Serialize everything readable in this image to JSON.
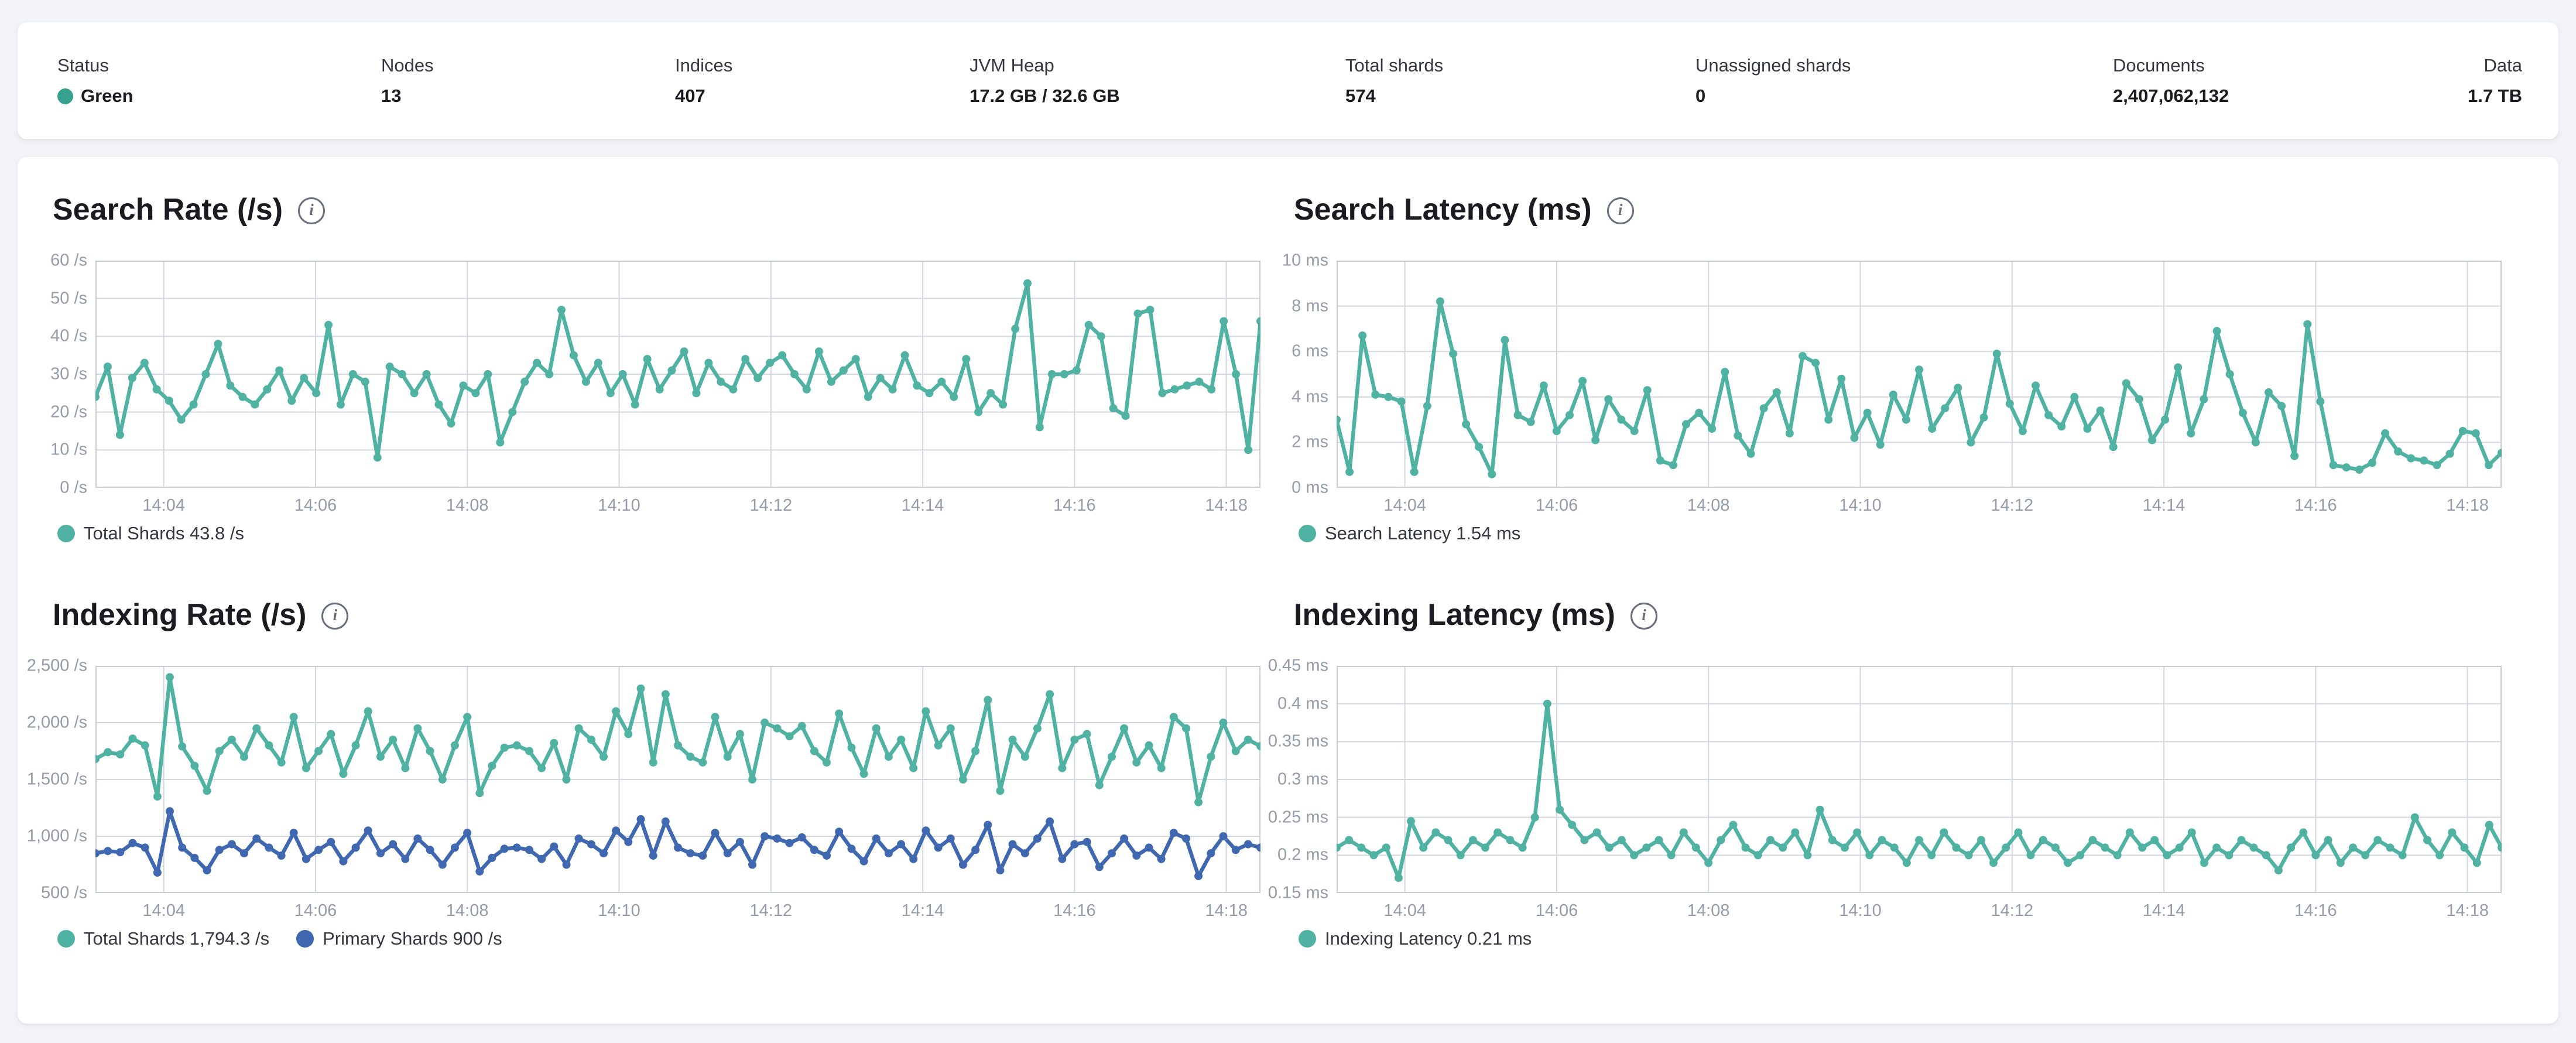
{
  "colors": {
    "teal": "#50b2a2",
    "blue": "#3f68b0",
    "health_green_dot": "#38a08f",
    "grid": "#d3d7df",
    "plot_border": "#c8cdd5",
    "axis_text": "#949ca9",
    "title_text": "#1a1c21"
  },
  "status_bar": {
    "items": [
      {
        "label": "Status",
        "value": "Green"
      },
      {
        "label": "Nodes",
        "value": "13"
      },
      {
        "label": "Indices",
        "value": "407"
      },
      {
        "label": "JVM Heap",
        "value": "17.2 GB / 32.6 GB"
      },
      {
        "label": "Total shards",
        "value": "574"
      },
      {
        "label": "Unassigned shards",
        "value": "0"
      },
      {
        "label": "Documents",
        "value": "2,407,062,132"
      },
      {
        "label": "Data",
        "value": "1.7 TB"
      }
    ]
  },
  "chart_data": [
    {
      "type": "line",
      "title": "Search Rate (/s)",
      "ylabel": "/s",
      "x_domain": [
        3.1,
        18.45
      ],
      "y_domain": [
        0,
        60
      ],
      "grid": true,
      "legend_position": "bottom",
      "x_ticks": [
        {
          "m": 4,
          "label": "14:04"
        },
        {
          "m": 6,
          "label": "14:06"
        },
        {
          "m": 8,
          "label": "14:08"
        },
        {
          "m": 10,
          "label": "14:10"
        },
        {
          "m": 12,
          "label": "14:12"
        },
        {
          "m": 14,
          "label": "14:14"
        },
        {
          "m": 16,
          "label": "14:16"
        },
        {
          "m": 18,
          "label": "14:18"
        }
      ],
      "y_ticks": [
        {
          "v": 0,
          "label": "0 /s"
        },
        {
          "v": 10,
          "label": "10 /s"
        },
        {
          "v": 20,
          "label": "20 /s"
        },
        {
          "v": 30,
          "label": "30 /s"
        },
        {
          "v": 40,
          "label": "40 /s"
        },
        {
          "v": 50,
          "label": "50 /s"
        },
        {
          "v": 60,
          "label": "60 /s"
        }
      ],
      "series": [
        {
          "name": "Total Shards",
          "color": "teal",
          "values": [
            24,
            32,
            14,
            29,
            33,
            26,
            23,
            18,
            22,
            30,
            38,
            27,
            24,
            22,
            26,
            31,
            23,
            29,
            25,
            43,
            22,
            30,
            28,
            8,
            32,
            30,
            25,
            30,
            22,
            17,
            27,
            25,
            30,
            12,
            20,
            28,
            33,
            30,
            47,
            35,
            28,
            33,
            25,
            30,
            22,
            34,
            26,
            31,
            36,
            25,
            33,
            28,
            26,
            34,
            29,
            33,
            35,
            30,
            26,
            36,
            28,
            31,
            34,
            24,
            29,
            26,
            35,
            27,
            25,
            28,
            24,
            34,
            20,
            25,
            22,
            42,
            54,
            16,
            30,
            30,
            31,
            43,
            40,
            21,
            19,
            46,
            47,
            25,
            26,
            27,
            28,
            26,
            44,
            30,
            10,
            44
          ]
        }
      ],
      "legend": [
        {
          "color": "teal",
          "label": "Total Shards 43.8 /s"
        }
      ]
    },
    {
      "type": "line",
      "title": "Search Latency (ms)",
      "ylabel": "ms",
      "x_domain": [
        3.1,
        18.45
      ],
      "y_domain": [
        0,
        10
      ],
      "grid": true,
      "legend_position": "bottom",
      "x_ticks": [
        {
          "m": 4,
          "label": "14:04"
        },
        {
          "m": 6,
          "label": "14:06"
        },
        {
          "m": 8,
          "label": "14:08"
        },
        {
          "m": 10,
          "label": "14:10"
        },
        {
          "m": 12,
          "label": "14:12"
        },
        {
          "m": 14,
          "label": "14:14"
        },
        {
          "m": 16,
          "label": "14:16"
        },
        {
          "m": 18,
          "label": "14:18"
        }
      ],
      "y_ticks": [
        {
          "v": 0,
          "label": "0 ms"
        },
        {
          "v": 2,
          "label": "2 ms"
        },
        {
          "v": 4,
          "label": "4 ms"
        },
        {
          "v": 6,
          "label": "6 ms"
        },
        {
          "v": 8,
          "label": "8 ms"
        },
        {
          "v": 10,
          "label": "10 ms"
        }
      ],
      "series": [
        {
          "name": "Search Latency",
          "color": "teal",
          "values": [
            3.0,
            0.7,
            6.7,
            4.1,
            4.0,
            3.8,
            0.7,
            3.6,
            8.2,
            5.9,
            2.8,
            1.8,
            0.6,
            6.5,
            3.2,
            2.9,
            4.5,
            2.5,
            3.2,
            4.7,
            2.1,
            3.9,
            3.0,
            2.5,
            4.3,
            1.2,
            1.0,
            2.8,
            3.3,
            2.6,
            5.1,
            2.3,
            1.5,
            3.5,
            4.2,
            2.4,
            5.8,
            5.5,
            3.0,
            4.8,
            2.2,
            3.3,
            1.9,
            4.1,
            3.0,
            5.2,
            2.6,
            3.5,
            4.4,
            2.0,
            3.1,
            5.9,
            3.7,
            2.5,
            4.5,
            3.2,
            2.7,
            4.0,
            2.6,
            3.4,
            1.8,
            4.6,
            3.9,
            2.1,
            3.0,
            5.3,
            2.4,
            3.9,
            6.9,
            5.0,
            3.3,
            2.0,
            4.2,
            3.6,
            1.4,
            7.2,
            3.8,
            1.0,
            0.9,
            0.8,
            1.1,
            2.4,
            1.6,
            1.3,
            1.2,
            1.0,
            1.5,
            2.5,
            2.4,
            1.0,
            1.54
          ]
        }
      ],
      "legend": [
        {
          "color": "teal",
          "label": "Search Latency 1.54 ms"
        }
      ]
    },
    {
      "type": "line",
      "title": "Indexing Rate (/s)",
      "ylabel": "/s",
      "x_domain": [
        3.1,
        18.45
      ],
      "y_domain": [
        500,
        2500
      ],
      "grid": true,
      "legend_position": "bottom",
      "x_ticks": [
        {
          "m": 4,
          "label": "14:04"
        },
        {
          "m": 6,
          "label": "14:06"
        },
        {
          "m": 8,
          "label": "14:08"
        },
        {
          "m": 10,
          "label": "14:10"
        },
        {
          "m": 12,
          "label": "14:12"
        },
        {
          "m": 14,
          "label": "14:14"
        },
        {
          "m": 16,
          "label": "14:16"
        },
        {
          "m": 18,
          "label": "14:18"
        }
      ],
      "y_ticks": [
        {
          "v": 500,
          "label": "500 /s"
        },
        {
          "v": 1000,
          "label": "1,000 /s"
        },
        {
          "v": 1500,
          "label": "1,500 /s"
        },
        {
          "v": 2000,
          "label": "2,000 /s"
        },
        {
          "v": 2500,
          "label": "2,500 /s"
        }
      ],
      "series": [
        {
          "name": "Total Shards",
          "color": "teal",
          "values": [
            1680,
            1740,
            1720,
            1860,
            1800,
            1350,
            2400,
            1790,
            1620,
            1400,
            1750,
            1850,
            1700,
            1950,
            1800,
            1650,
            2050,
            1600,
            1750,
            1900,
            1550,
            1800,
            2100,
            1700,
            1850,
            1600,
            1950,
            1750,
            1500,
            1800,
            2050,
            1380,
            1620,
            1780,
            1800,
            1750,
            1600,
            1820,
            1500,
            1950,
            1850,
            1700,
            2100,
            1900,
            2300,
            1650,
            2250,
            1800,
            1700,
            1650,
            2050,
            1700,
            1900,
            1500,
            2000,
            1950,
            1880,
            1970,
            1750,
            1650,
            2080,
            1780,
            1550,
            1950,
            1700,
            1850,
            1600,
            2100,
            1800,
            1950,
            1500,
            1750,
            2200,
            1400,
            1850,
            1700,
            1950,
            2250,
            1600,
            1850,
            1900,
            1450,
            1700,
            1950,
            1650,
            1800,
            1600,
            2050,
            1950,
            1300,
            1700,
            2000,
            1750,
            1850,
            1794
          ]
        },
        {
          "name": "Primary Shards",
          "color": "blue",
          "values": [
            850,
            870,
            860,
            940,
            900,
            680,
            1220,
            900,
            810,
            700,
            880,
            930,
            850,
            980,
            900,
            830,
            1030,
            800,
            880,
            950,
            780,
            900,
            1050,
            850,
            930,
            800,
            980,
            880,
            750,
            900,
            1030,
            690,
            810,
            890,
            900,
            880,
            800,
            910,
            750,
            980,
            930,
            850,
            1050,
            950,
            1150,
            830,
            1130,
            900,
            850,
            830,
            1030,
            850,
            950,
            750,
            1000,
            980,
            940,
            990,
            880,
            830,
            1040,
            890,
            780,
            980,
            850,
            930,
            800,
            1050,
            900,
            980,
            750,
            880,
            1100,
            700,
            930,
            850,
            980,
            1130,
            800,
            930,
            950,
            730,
            850,
            980,
            830,
            900,
            800,
            1030,
            980,
            650,
            850,
            1000,
            880,
            930,
            900
          ]
        }
      ],
      "legend": [
        {
          "color": "teal",
          "label": "Total Shards 1,794.3 /s"
        },
        {
          "color": "blue",
          "label": "Primary Shards 900 /s"
        }
      ]
    },
    {
      "type": "line",
      "title": "Indexing Latency (ms)",
      "ylabel": "ms",
      "x_domain": [
        3.1,
        18.45
      ],
      "y_domain": [
        0.15,
        0.45
      ],
      "grid": true,
      "legend_position": "bottom",
      "x_ticks": [
        {
          "m": 4,
          "label": "14:04"
        },
        {
          "m": 6,
          "label": "14:06"
        },
        {
          "m": 8,
          "label": "14:08"
        },
        {
          "m": 10,
          "label": "14:10"
        },
        {
          "m": 12,
          "label": "14:12"
        },
        {
          "m": 14,
          "label": "14:14"
        },
        {
          "m": 16,
          "label": "14:16"
        },
        {
          "m": 18,
          "label": "14:18"
        }
      ],
      "y_ticks": [
        {
          "v": 0.15,
          "label": "0.15 ms"
        },
        {
          "v": 0.2,
          "label": "0.2 ms"
        },
        {
          "v": 0.25,
          "label": "0.25 ms"
        },
        {
          "v": 0.3,
          "label": "0.3 ms"
        },
        {
          "v": 0.35,
          "label": "0.35 ms"
        },
        {
          "v": 0.4,
          "label": "0.4 ms"
        },
        {
          "v": 0.45,
          "label": "0.45 ms"
        }
      ],
      "series": [
        {
          "name": "Indexing Latency",
          "color": "teal",
          "values": [
            0.21,
            0.22,
            0.21,
            0.2,
            0.21,
            0.17,
            0.245,
            0.21,
            0.23,
            0.22,
            0.2,
            0.22,
            0.21,
            0.23,
            0.22,
            0.21,
            0.25,
            0.4,
            0.26,
            0.24,
            0.22,
            0.23,
            0.21,
            0.22,
            0.2,
            0.21,
            0.22,
            0.2,
            0.23,
            0.21,
            0.19,
            0.22,
            0.24,
            0.21,
            0.2,
            0.22,
            0.21,
            0.23,
            0.2,
            0.26,
            0.22,
            0.21,
            0.23,
            0.2,
            0.22,
            0.21,
            0.19,
            0.22,
            0.2,
            0.23,
            0.21,
            0.2,
            0.22,
            0.19,
            0.21,
            0.23,
            0.2,
            0.22,
            0.21,
            0.19,
            0.2,
            0.22,
            0.21,
            0.2,
            0.23,
            0.21,
            0.22,
            0.2,
            0.21,
            0.23,
            0.19,
            0.21,
            0.2,
            0.22,
            0.21,
            0.2,
            0.18,
            0.21,
            0.23,
            0.2,
            0.22,
            0.19,
            0.21,
            0.2,
            0.22,
            0.21,
            0.2,
            0.25,
            0.22,
            0.2,
            0.23,
            0.21,
            0.19,
            0.24,
            0.21
          ]
        }
      ],
      "legend": [
        {
          "color": "teal",
          "label": "Indexing Latency 0.21 ms"
        }
      ]
    }
  ]
}
